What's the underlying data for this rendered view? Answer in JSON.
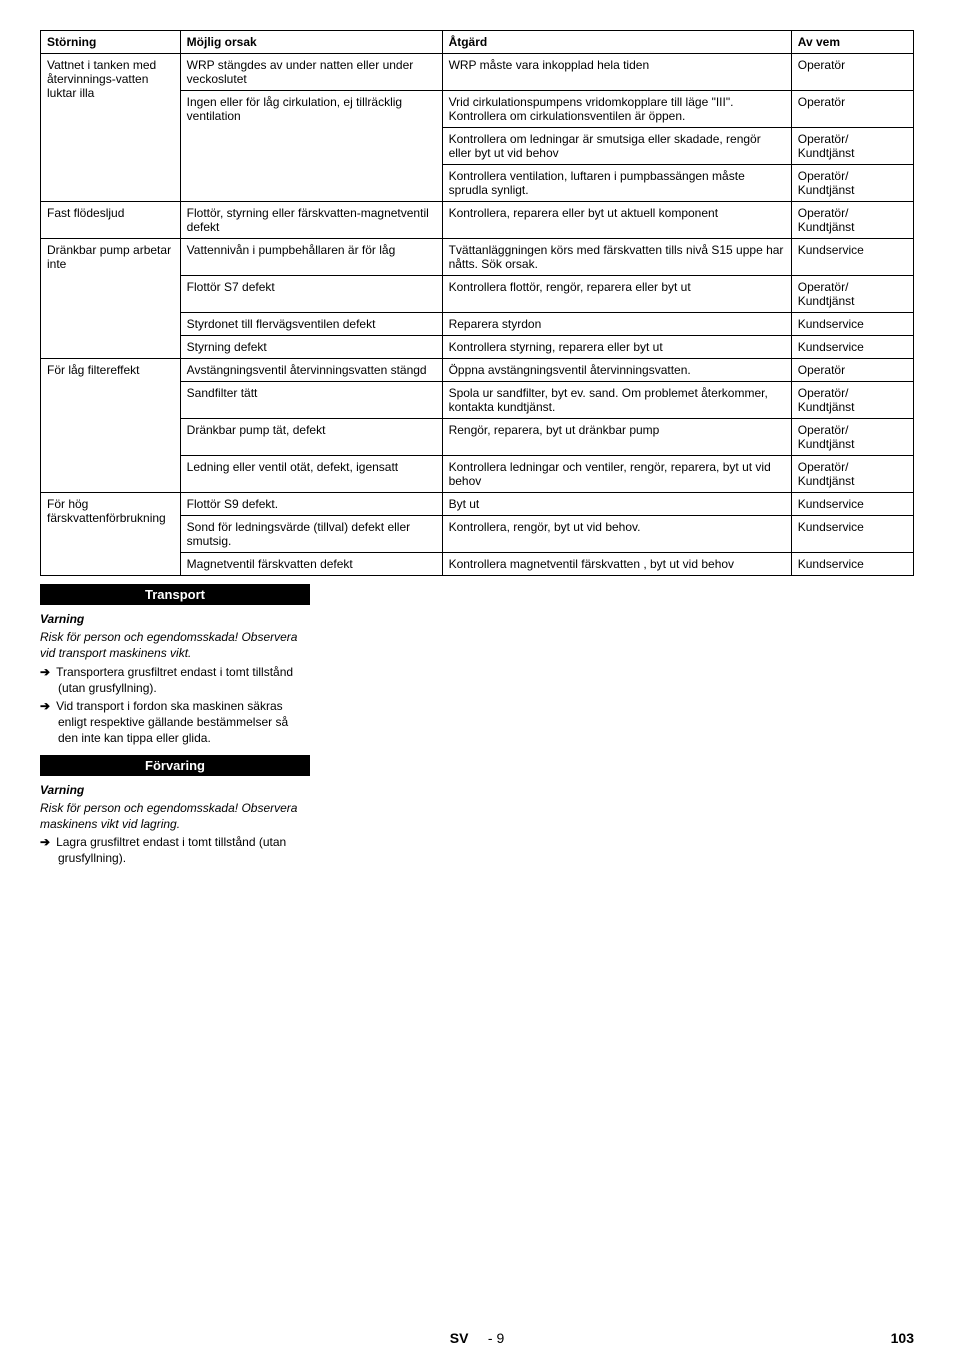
{
  "table": {
    "headers": [
      "Störning",
      "Möjlig orsak",
      "Åtgärd",
      "Av vem"
    ],
    "groups": [
      {
        "stoerning": "Vattnet i tanken med återvinnings-vatten luktar illa",
        "rows": [
          {
            "orsak": "WRP stängdes av under natten eller under veckoslutet",
            "atgard": "WRP måste vara inkopplad hela tiden",
            "vem": "Operatör"
          },
          {
            "orsak": "Ingen eller för låg cirkulation, ej tillräcklig ventilation",
            "atgard": "Vrid cirkulationspumpens vridomkopplare till läge \"III\".\nKontrollera om cirkulationsventilen är öppen.",
            "vem": "Operatör",
            "orsak_rowspan": 3
          },
          {
            "atgard": "Kontrollera om ledningar är smutsiga eller skadade, rengör eller byt ut vid behov",
            "vem": "Operatör/\nKundtjänst"
          },
          {
            "atgard": "Kontrollera ventilation, luftaren i pumpbassängen måste sprudla synligt.",
            "vem": "Operatör/\nKundtjänst"
          }
        ]
      },
      {
        "stoerning": "Fast flödesljud",
        "rows": [
          {
            "orsak": "Flottör, styrning eller färskvatten-magnetventil defekt",
            "atgard": "Kontrollera, reparera eller byt ut aktuell komponent",
            "vem": "Operatör/\nKundtjänst"
          }
        ]
      },
      {
        "stoerning": "Dränkbar pump arbetar inte",
        "rows": [
          {
            "orsak": "Vattennivån i pumpbehållaren är för låg",
            "atgard": "Tvättanläggningen körs med färskvatten tills nivå S15 uppe har nåtts. Sök orsak.",
            "vem": "Kundservice"
          },
          {
            "orsak": "Flottör S7 defekt",
            "atgard": "Kontrollera flottör, rengör, reparera eller byt ut",
            "vem": "Operatör/\nKundtjänst"
          },
          {
            "orsak": "Styrdonet till flervägsventilen defekt",
            "atgard": "Reparera styrdon",
            "vem": "Kundservice"
          },
          {
            "orsak": "Styrning defekt",
            "atgard": "Kontrollera styrning, reparera eller byt ut",
            "vem": "Kundservice"
          }
        ]
      },
      {
        "stoerning": "För låg filtereffekt",
        "rows": [
          {
            "orsak": "Avstängningsventil återvinningsvatten stängd",
            "atgard": "Öppna avstängningsventil återvinningsvatten.",
            "vem": "Operatör"
          },
          {
            "orsak": "Sandfilter tätt",
            "atgard": "Spola ur sandfilter, byt ev. sand. Om problemet återkommer, kontakta kundtjänst.",
            "vem": "Operatör/\nKundtjänst"
          },
          {
            "orsak": "Dränkbar pump tät, defekt",
            "atgard": "Rengör, reparera, byt ut dränkbar pump",
            "vem": "Operatör/\nKundtjänst"
          },
          {
            "orsak": "Ledning eller ventil otät, defekt, igensatt",
            "atgard": "Kontrollera ledningar och ventiler, rengör, reparera, byt ut vid behov",
            "vem": "Operatör/\nKundtjänst"
          }
        ]
      },
      {
        "stoerning": "För hög färskvattenförbrukning",
        "rows": [
          {
            "orsak": "Flottör S9 defekt.",
            "atgard": "Byt ut",
            "vem": "Kundservice"
          },
          {
            "orsak": "Sond för ledningsvärde (tillval) defekt eller smutsig.",
            "atgard": "Kontrollera, rengör, byt ut vid behov.",
            "vem": "Kundservice"
          },
          {
            "orsak": "Magnetventil färskvatten defekt",
            "atgard": "Kontrollera magnetventil färskvatten , byt ut vid behov",
            "vem": "Kundservice"
          }
        ]
      }
    ]
  },
  "sections": {
    "transport": {
      "title": "Transport",
      "warning": "Varning",
      "intro": "Risk för person och egendomsskada! Observera vid transport maskinens vikt.",
      "items": [
        "Transportera grusfiltret endast i tomt tillstånd (utan grusfyllning).",
        "Vid transport i fordon ska maskinen säkras enligt respektive gällande bestämmelser så den inte kan tippa eller glida."
      ]
    },
    "forvaring": {
      "title": "Förvaring",
      "warning": "Varning",
      "intro": "Risk för person och egendomsskada! Observera maskinens vikt vid lagring.",
      "items": [
        "Lagra grusfiltret endast i tomt tillstånd (utan grusfyllning)."
      ]
    }
  },
  "footer": {
    "lang": "SV",
    "pagesub": "- 9",
    "page": "103"
  }
}
